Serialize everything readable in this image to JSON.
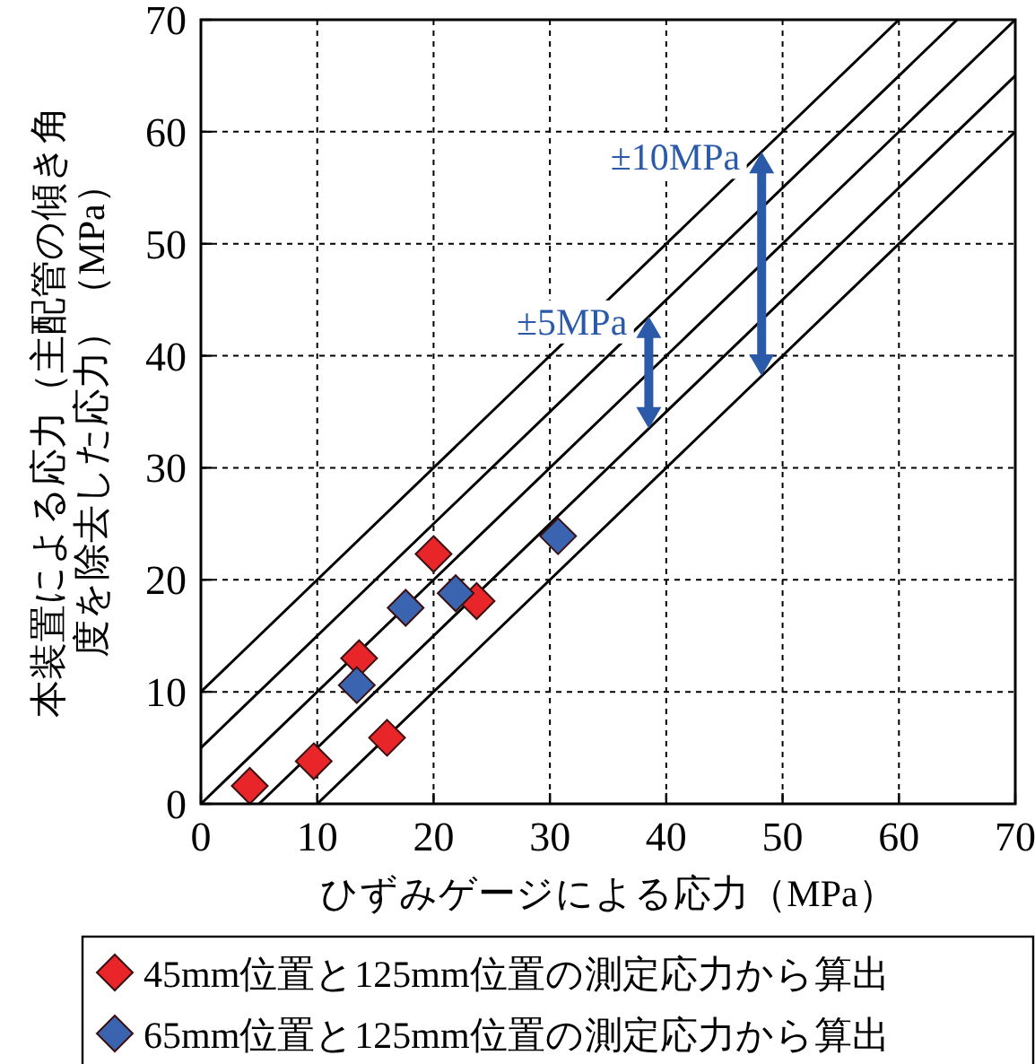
{
  "chart_data": {
    "type": "scatter",
    "xlabel": "ひずみゲージによる応力（MPa）",
    "ylabel": "本装置による応力（主配管の傾き角度を除去した応力）（MPa）",
    "xlim": [
      0,
      70
    ],
    "ylim": [
      0,
      70
    ],
    "xticks": [
      0,
      10,
      20,
      30,
      40,
      50,
      60,
      70
    ],
    "yticks": [
      0,
      10,
      20,
      30,
      40,
      50,
      60,
      70
    ],
    "grid": true,
    "legend": "bottom",
    "marker": "diamond",
    "series": [
      {
        "name": "45mm位置と125mm位置の測定応力から算出",
        "color": "#e8262a",
        "x": [
          4.2,
          9.7,
          16.0,
          13.6,
          20.0,
          23.7
        ],
        "values": [
          1.6,
          3.8,
          5.9,
          13.0,
          22.3,
          18.1
        ]
      },
      {
        "name": "65mm位置と125mm位置の測定応力から算出",
        "color": "#3a64b0",
        "x": [
          13.4,
          17.6,
          21.9,
          30.7
        ],
        "values": [
          10.6,
          17.5,
          18.8,
          23.9
        ]
      },
      {
        "type": "line",
        "marker": "none",
        "color": "#000000",
        "x": [
          0,
          60
        ],
        "values": [
          10,
          70
        ]
      },
      {
        "type": "line",
        "marker": "none",
        "color": "#000000",
        "x": [
          0,
          65
        ],
        "values": [
          5,
          70
        ]
      },
      {
        "type": "line",
        "marker": "none",
        "color": "#000000",
        "x": [
          0,
          70
        ],
        "values": [
          0,
          70
        ]
      },
      {
        "type": "line",
        "marker": "none",
        "color": "#000000",
        "x": [
          5,
          70
        ],
        "values": [
          0,
          65
        ]
      },
      {
        "type": "line",
        "marker": "none",
        "color": "#000000",
        "x": [
          10,
          70
        ],
        "values": [
          0,
          60
        ]
      }
    ],
    "annotations": [
      {
        "text": "±10MPa",
        "x": 48.2,
        "y": 58.2
      },
      {
        "text": "±5MPa",
        "x": 38.5,
        "y": 43.5
      }
    ]
  }
}
